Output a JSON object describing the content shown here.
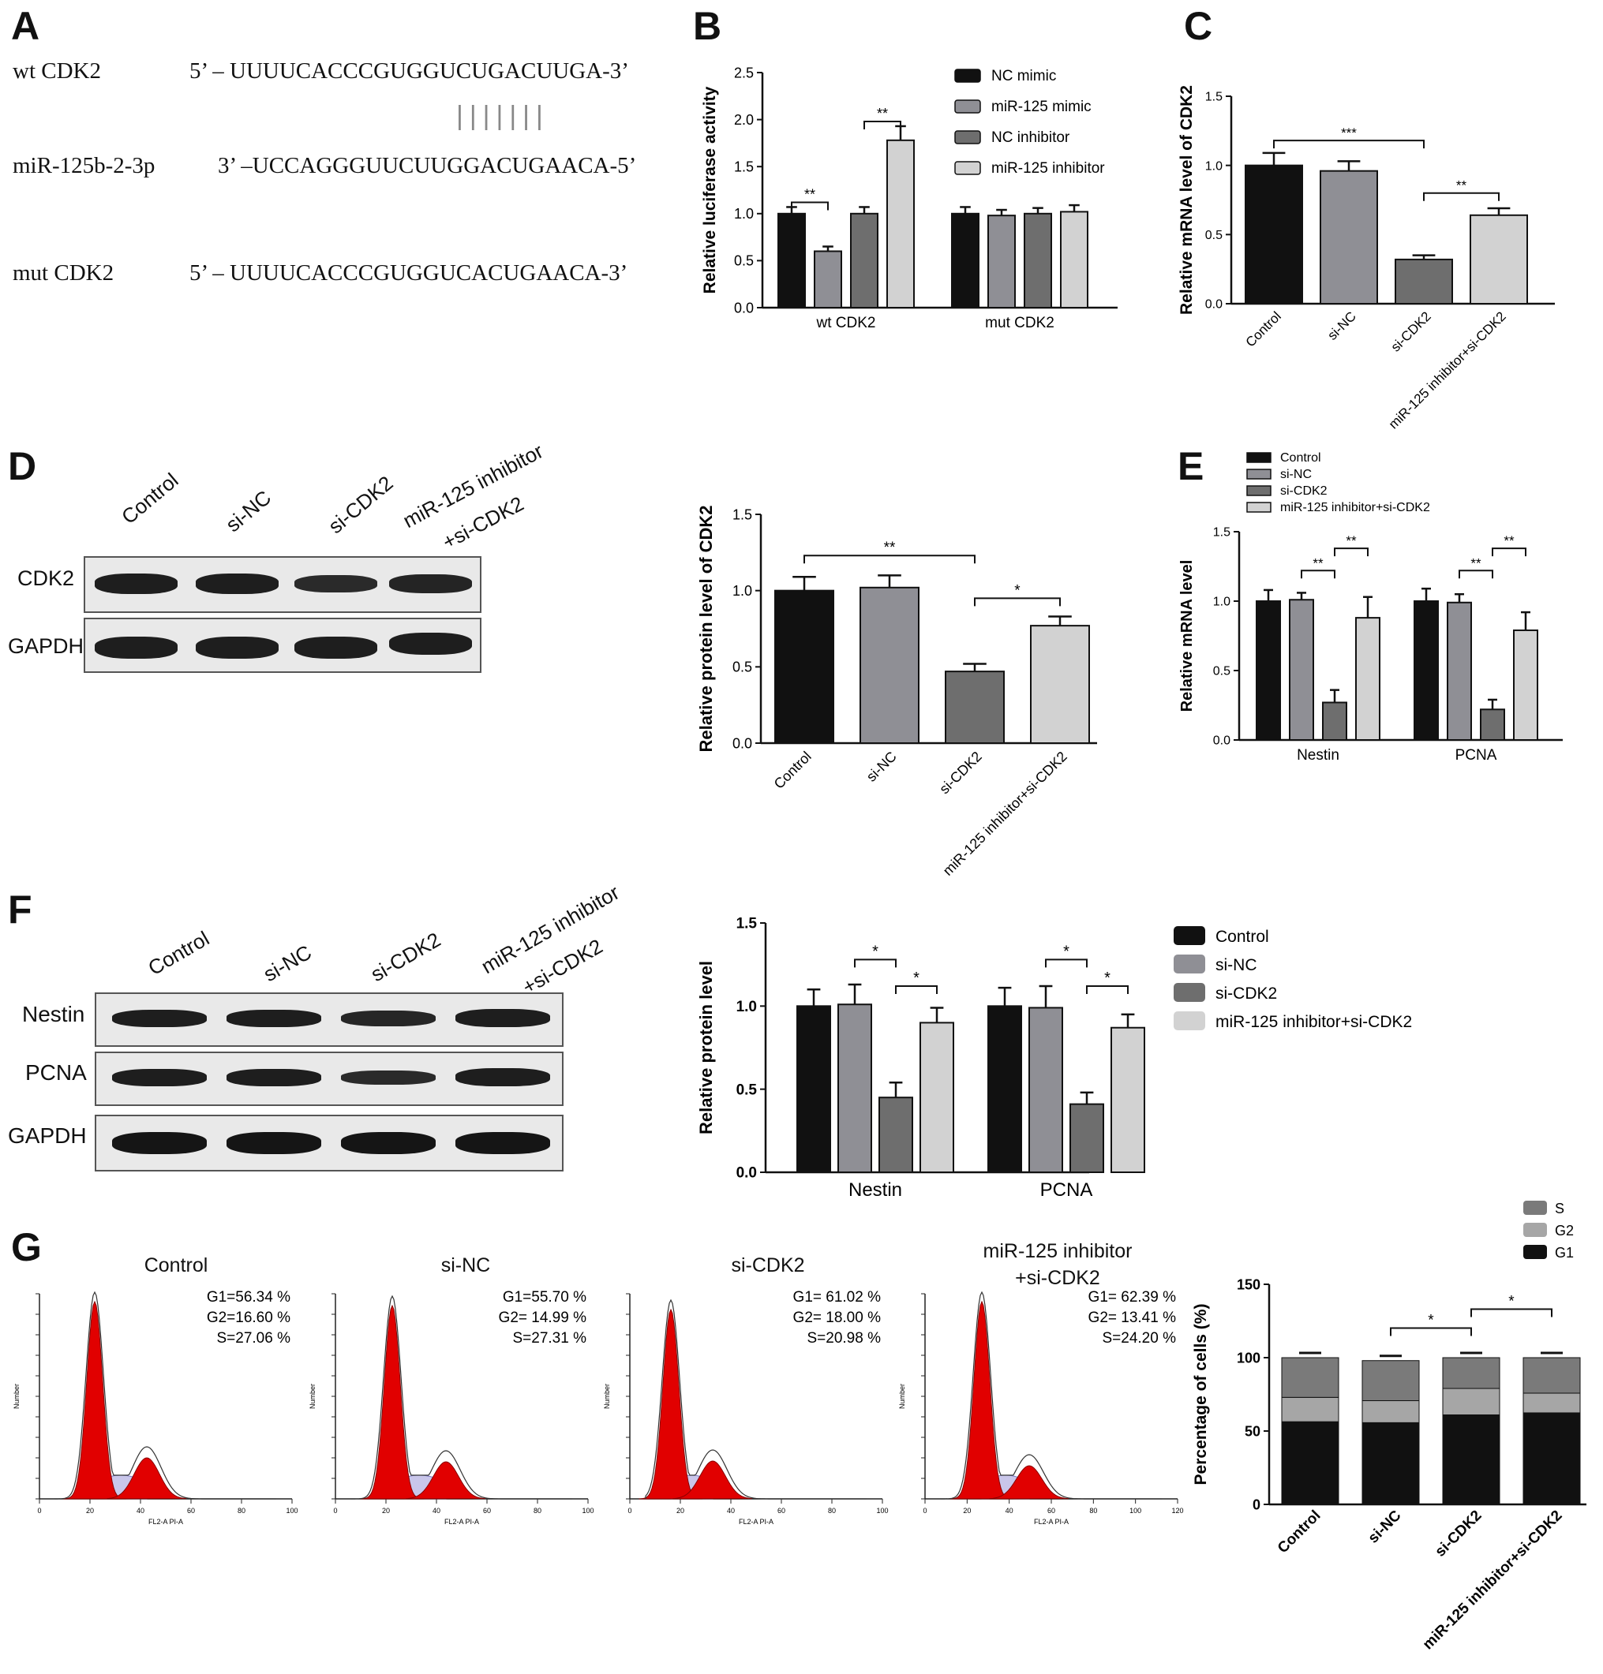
{
  "panels": {
    "A": "A",
    "B": "B",
    "C": "C",
    "D": "D",
    "E": "E",
    "F": "F",
    "G": "G"
  },
  "panelA": {
    "wt_name": "wt CDK2",
    "wt_seq": "5’ – UUUUCACCCGUGGUCUGACUUGA-3’",
    "pairing": "|||||||",
    "mir_name": "miR-125b-2-3p",
    "mir_seq": "3’ –UCCAGGGUUCUUGGACUGAACA-5’",
    "mut_name": "mut CDK2",
    "mut_seq": "5’ – UUUUCACCCGUGGUCACUGAACA-3’"
  },
  "blotD": {
    "lanes": [
      "Control",
      "si-NC",
      "si-CDK2",
      "miR-125 inhibitor",
      "+si-CDK2"
    ],
    "rows": [
      "CDK2",
      "GAPDH"
    ]
  },
  "blotF": {
    "lanes": [
      "Control",
      "si-NC",
      "si-CDK2",
      "miR-125 inhibitor",
      "+si-CDK2"
    ],
    "rows": [
      "Nestin",
      "PCNA",
      "GAPDH"
    ]
  },
  "colors": {
    "black": "#111111",
    "grey1": "#8f8f95",
    "grey2": "#6e6e6e",
    "light": "#d2d2d2",
    "red": "#e10000",
    "lavender": "#c9c6ea"
  },
  "chart_data": [
    {
      "panel": "B",
      "type": "bar",
      "categories": [
        "wt CDK2",
        "mut CDK2"
      ],
      "series": [
        {
          "name": "NC mimic",
          "values": [
            1.0,
            1.0
          ],
          "errors": [
            0.07,
            0.07
          ]
        },
        {
          "name": "miR-125 mimic",
          "values": [
            0.6,
            0.98
          ],
          "errors": [
            0.05,
            0.06
          ]
        },
        {
          "name": "NC inhibitor",
          "values": [
            1.0,
            1.0
          ],
          "errors": [
            0.07,
            0.06
          ]
        },
        {
          "name": "miR-125 inhibitor",
          "values": [
            1.78,
            1.02
          ],
          "errors": [
            0.15,
            0.07
          ]
        }
      ],
      "ylabel": "Relative luciferase activity",
      "ylim": [
        0,
        2.5
      ],
      "yticks": [
        "0.0",
        "0.5",
        "1.0",
        "1.5",
        "2.0",
        "2.5"
      ],
      "significance": [
        "**",
        "**"
      ],
      "legend": "top-right"
    },
    {
      "panel": "C",
      "type": "bar",
      "categories": [
        "Control",
        "si-NC",
        "si-CDK2",
        "miR-125 inhibitor+si-CDK2"
      ],
      "values": [
        1.0,
        0.96,
        0.32,
        0.64
      ],
      "errors": [
        0.09,
        0.07,
        0.03,
        0.05
      ],
      "ylabel": "Relative mRNA level of CDK2",
      "ylim": [
        0,
        1.5
      ],
      "yticks": [
        "0.0",
        "0.5",
        "1.0",
        "1.5"
      ],
      "significance": [
        "***",
        "**"
      ]
    },
    {
      "panel": "D-quant",
      "type": "bar",
      "categories": [
        "Control",
        "si-NC",
        "si-CDK2",
        "miR-125 inhibitor+si-CDK2"
      ],
      "values": [
        1.0,
        1.02,
        0.47,
        0.77
      ],
      "errors": [
        0.09,
        0.08,
        0.05,
        0.06
      ],
      "ylabel": "Relative protein level of CDK2",
      "ylim": [
        0,
        1.5
      ],
      "yticks": [
        "0.0",
        "0.5",
        "1.0",
        "1.5"
      ],
      "significance": [
        "**",
        "*"
      ]
    },
    {
      "panel": "E",
      "type": "bar",
      "categories": [
        "Nestin",
        "PCNA"
      ],
      "series": [
        {
          "name": "Control",
          "values": [
            1.0,
            1.0
          ],
          "errors": [
            0.08,
            0.09
          ]
        },
        {
          "name": "si-NC",
          "values": [
            1.01,
            0.99
          ],
          "errors": [
            0.05,
            0.06
          ]
        },
        {
          "name": "si-CDK2",
          "values": [
            0.27,
            0.22
          ],
          "errors": [
            0.09,
            0.07
          ]
        },
        {
          "name": "miR-125 inhibitor+si-CDK2",
          "values": [
            0.88,
            0.79
          ],
          "errors": [
            0.15,
            0.13
          ]
        }
      ],
      "ylabel": "Relative mRNA level",
      "ylim": [
        0,
        1.5
      ],
      "yticks": [
        "0.0",
        "0.5",
        "1.0",
        "1.5"
      ],
      "significance": [
        "**",
        "**",
        "**",
        "**"
      ],
      "legend": "top-left"
    },
    {
      "panel": "F-quant",
      "type": "bar",
      "categories": [
        "Nestin",
        "PCNA"
      ],
      "series": [
        {
          "name": "Control",
          "values": [
            1.0,
            1.0
          ],
          "errors": [
            0.1,
            0.11
          ]
        },
        {
          "name": "si-NC",
          "values": [
            1.01,
            0.99
          ],
          "errors": [
            0.12,
            0.13
          ]
        },
        {
          "name": "si-CDK2",
          "values": [
            0.45,
            0.41
          ],
          "errors": [
            0.09,
            0.07
          ]
        },
        {
          "name": "miR-125 inhibitor+si-CDK2",
          "values": [
            0.9,
            0.87
          ],
          "errors": [
            0.09,
            0.08
          ]
        }
      ],
      "ylabel": "Relative  protein level",
      "ylim": [
        0,
        1.5
      ],
      "yticks": [
        "0.0",
        "0.5",
        "1.0",
        "1.5"
      ],
      "significance": [
        "*",
        "*",
        "*",
        "*"
      ],
      "legend": "right"
    },
    {
      "panel": "G-flow",
      "type": "area",
      "samples": [
        {
          "title": "Control",
          "title2": "",
          "stats": [
            "G1=56.34 %",
            "G2=16.60 %",
            "S=27.06 %"
          ],
          "xticks": [
            "0",
            "20",
            "40",
            "60",
            "80",
            "100"
          ]
        },
        {
          "title": "si-NC",
          "title2": "",
          "stats": [
            "G1=55.70 %",
            "G2= 14.99 %",
            "S=27.31 %"
          ],
          "xticks": [
            "0",
            "20",
            "40",
            "60",
            "80",
            "100"
          ]
        },
        {
          "title": "si-CDK2",
          "title2": "",
          "stats": [
            "G1= 61.02 %",
            "G2= 18.00 %",
            "S=20.98 %"
          ],
          "xticks": [
            "0",
            "20",
            "40",
            "60",
            "80",
            "100"
          ]
        },
        {
          "title": "miR-125 inhibitor",
          "title2": "+si-CDK2",
          "stats": [
            "G1= 62.39 %",
            "G2= 13.41 %",
            "S=24.20 %"
          ],
          "xticks": [
            "0",
            "20",
            "40",
            "60",
            "80",
            "100",
            "120"
          ]
        }
      ],
      "xlabel": "FL2-A PI-A",
      "ylabel": "Number"
    },
    {
      "panel": "G-bar",
      "type": "bar",
      "stacked": true,
      "categories": [
        "Control",
        "si-NC",
        "si-CDK2",
        "miR-125 inhibitor+si-CDK2"
      ],
      "series": [
        {
          "name": "G1",
          "values": [
            56.34,
            55.7,
            61.02,
            62.39
          ]
        },
        {
          "name": "G2",
          "values": [
            16.6,
            14.99,
            18.0,
            13.41
          ]
        },
        {
          "name": "S",
          "values": [
            27.06,
            27.31,
            20.98,
            24.2
          ]
        }
      ],
      "ylabel": "Percentage of cells (%)",
      "ylim": [
        0,
        150
      ],
      "yticks": [
        "0",
        "50",
        "100",
        "150"
      ],
      "significance": [
        "*",
        "*"
      ],
      "legend": "top-right"
    }
  ]
}
